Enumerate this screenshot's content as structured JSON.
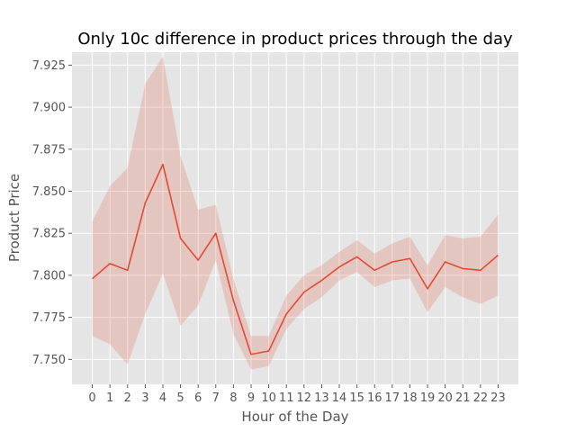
{
  "chart_data": {
    "type": "line",
    "title": "Only 10c difference in product prices through the day",
    "xlabel": "Hour of the Day",
    "ylabel": "Product Price",
    "x": [
      0,
      1,
      2,
      3,
      4,
      5,
      6,
      7,
      8,
      9,
      10,
      11,
      12,
      13,
      14,
      15,
      16,
      17,
      18,
      19,
      20,
      21,
      22,
      23
    ],
    "xticks": [
      "0",
      "1",
      "2",
      "3",
      "4",
      "5",
      "6",
      "7",
      "8",
      "9",
      "10",
      "11",
      "12",
      "13",
      "14",
      "15",
      "16",
      "17",
      "18",
      "19",
      "20",
      "21",
      "22",
      "23"
    ],
    "yticks": [
      "7.750",
      "7.775",
      "7.800",
      "7.825",
      "7.850",
      "7.875",
      "7.900",
      "7.925"
    ],
    "ytick_values": [
      7.75,
      7.775,
      7.8,
      7.825,
      7.85,
      7.875,
      7.9,
      7.925
    ],
    "ylim": [
      7.7352,
      7.9327
    ],
    "xlim": [
      -1.15,
      24.15
    ],
    "grid": true,
    "series": [
      {
        "values": [
          7.798,
          7.807,
          7.803,
          7.843,
          7.866,
          7.822,
          7.809,
          7.825,
          7.785,
          7.753,
          7.755,
          7.777,
          7.79,
          7.797,
          7.805,
          7.811,
          7.803,
          7.808,
          7.81,
          7.792,
          7.808,
          7.804,
          7.803,
          7.812
        ],
        "ci_lower": [
          7.764,
          7.759,
          7.747,
          7.777,
          7.801,
          7.77,
          7.782,
          7.809,
          7.765,
          7.744,
          7.746,
          7.768,
          7.78,
          7.787,
          7.797,
          7.802,
          7.793,
          7.797,
          7.798,
          7.778,
          7.793,
          7.787,
          7.783,
          7.788
        ],
        "ci_upper": [
          7.832,
          7.853,
          7.864,
          7.914,
          7.93,
          7.871,
          7.839,
          7.842,
          7.798,
          7.764,
          7.764,
          7.788,
          7.8,
          7.806,
          7.814,
          7.821,
          7.813,
          7.819,
          7.823,
          7.806,
          7.824,
          7.822,
          7.823,
          7.836
        ]
      }
    ],
    "colors": {
      "line": "#E24A33",
      "band": "#E24A33",
      "plot_background": "#E5E5E5",
      "grid": "#FFFFFF"
    }
  }
}
